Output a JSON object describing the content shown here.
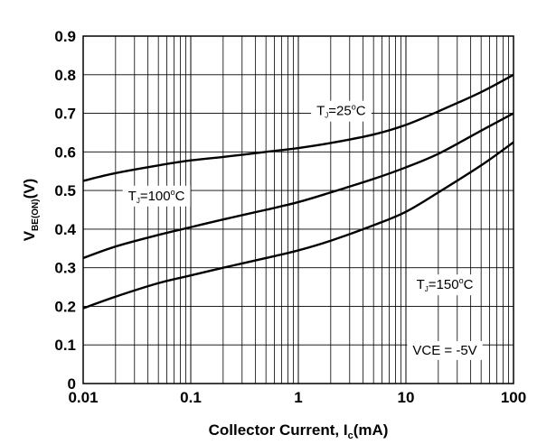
{
  "chart_data": {
    "type": "line",
    "title": "",
    "xlabel": "Collector Current, I_c(mA)",
    "xlabel_parts": {
      "main": "Collector Current, I",
      "sub": "c",
      "tail": "(mA)"
    },
    "ylabel": "V_BE(ON)(V)",
    "ylabel_parts": {
      "main": "V",
      "sub": "BE(ON)",
      "tail": "(V)"
    },
    "x_scale": "log",
    "xlim": [
      0.01,
      100
    ],
    "ylim": [
      0,
      0.9
    ],
    "grid": true,
    "legend": "none",
    "x_ticks": [
      {
        "value": 0.01,
        "label": "0.01"
      },
      {
        "value": 0.1,
        "label": "0.1"
      },
      {
        "value": 1,
        "label": "1"
      },
      {
        "value": 10,
        "label": "10"
      },
      {
        "value": 100,
        "label": "100"
      }
    ],
    "y_ticks": [
      {
        "value": 0,
        "label": "0"
      },
      {
        "value": 0.1,
        "label": "0.1"
      },
      {
        "value": 0.2,
        "label": "0.2"
      },
      {
        "value": 0.3,
        "label": "0.3"
      },
      {
        "value": 0.4,
        "label": "0.4"
      },
      {
        "value": 0.5,
        "label": "0.5"
      },
      {
        "value": 0.6,
        "label": "0.6"
      },
      {
        "value": 0.7,
        "label": "0.7"
      },
      {
        "value": 0.8,
        "label": "0.8"
      },
      {
        "value": 0.9,
        "label": "0.9"
      }
    ],
    "series": [
      {
        "x": [
          0.01,
          0.02,
          0.05,
          0.1,
          0.2,
          0.5,
          1,
          2,
          5,
          10,
          20,
          50,
          100
        ],
        "y": [
          0.525,
          0.545,
          0.565,
          0.578,
          0.587,
          0.6,
          0.61,
          0.623,
          0.645,
          0.67,
          0.705,
          0.755,
          0.8
        ]
      },
      {
        "x": [
          0.01,
          0.02,
          0.05,
          0.1,
          0.2,
          0.5,
          1,
          2,
          5,
          10,
          20,
          50,
          100
        ],
        "y": [
          0.325,
          0.355,
          0.385,
          0.405,
          0.425,
          0.45,
          0.47,
          0.495,
          0.53,
          0.56,
          0.595,
          0.655,
          0.7
        ]
      },
      {
        "x": [
          0.01,
          0.02,
          0.05,
          0.1,
          0.2,
          0.5,
          1,
          2,
          5,
          10,
          20,
          50,
          100
        ],
        "y": [
          0.195,
          0.225,
          0.26,
          0.28,
          0.3,
          0.325,
          0.345,
          0.37,
          0.41,
          0.445,
          0.495,
          0.565,
          0.625
        ]
      }
    ],
    "annotations": [
      {
        "main": "T",
        "sub": "J",
        "tail": "=25",
        "deg": "o",
        "unit": "C",
        "x": 2.5,
        "y": 0.695
      },
      {
        "main": "T",
        "sub": "J",
        "tail": "=100",
        "deg": "o",
        "unit": "C",
        "x": 0.048,
        "y": 0.475
      },
      {
        "main": "T",
        "sub": "J",
        "tail": "=150",
        "deg": "o",
        "unit": "C",
        "x": 23,
        "y": 0.245
      },
      {
        "main": "VCE = -5V",
        "x": 23,
        "y": 0.075
      }
    ]
  }
}
